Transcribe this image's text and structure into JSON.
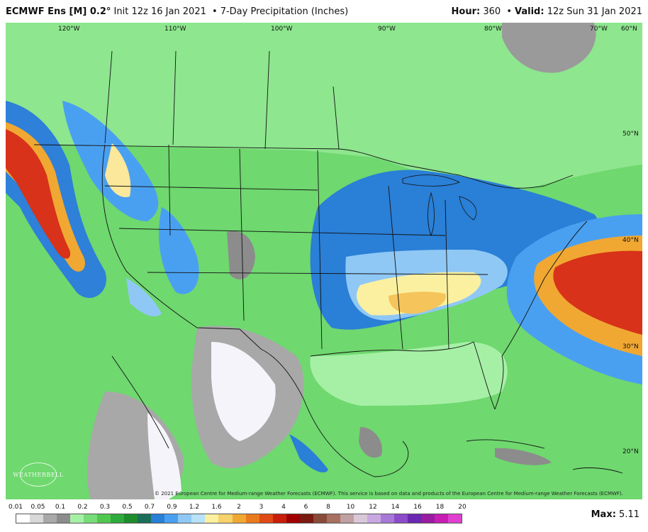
{
  "header": {
    "model": "ECMWF Ens [M] 0.2",
    "degree": "°",
    "init": "Init 12z 16 Jan 2021",
    "product": "7-Day Precipitation (Inches)",
    "hour_label": "Hour:",
    "hour_value": "360",
    "valid_label": "Valid:",
    "valid_value": "12z Sun 31 Jan 2021"
  },
  "map": {
    "longitude_labels": [
      "120°W",
      "110°W",
      "100°W",
      "90°W",
      "80°W",
      "70°W",
      "60°N"
    ],
    "latitude_labels": [
      "50°N",
      "40°N",
      "30°N",
      "20°N"
    ],
    "copyright": "© 2021 European Centre for Medium-range Weather Forecasts (ECMWF). This service is based on data and products of the European Centre for Medium-range Weather Forecasts (ECMWF).",
    "logo_text": "WEATHERBELL"
  },
  "legend": {
    "ticks": [
      "0.01",
      "0.05",
      "0.1",
      "0.2",
      "0.3",
      "0.5",
      "0.7",
      "0.9",
      "1.2",
      "1.6",
      "2",
      "3",
      "4",
      "6",
      "8",
      "10",
      "12",
      "14",
      "16",
      "18",
      "20"
    ],
    "colors": [
      "#ffffff",
      "#d8d8d8",
      "#a8a8a8",
      "#8c8c8c",
      "#a6f0a6",
      "#78dc78",
      "#50c850",
      "#2faa3c",
      "#1e8c2d",
      "#1a6e5a",
      "#2a7fd6",
      "#4aa0f0",
      "#8fc8f5",
      "#b8e2f8",
      "#fbf0a0",
      "#f5d26a",
      "#f0a832",
      "#ea7a1e",
      "#e04a14",
      "#c81e0a",
      "#a00000",
      "#7a1a10",
      "#8a4a3a",
      "#a87060",
      "#c0a0a0",
      "#d8c8d8",
      "#c8a8e0",
      "#a878d8",
      "#8a4cc8",
      "#6a28b0",
      "#9a1ca0",
      "#c81eb4",
      "#e040d0"
    ],
    "max_label": "Max:",
    "max_value": "5.11"
  }
}
